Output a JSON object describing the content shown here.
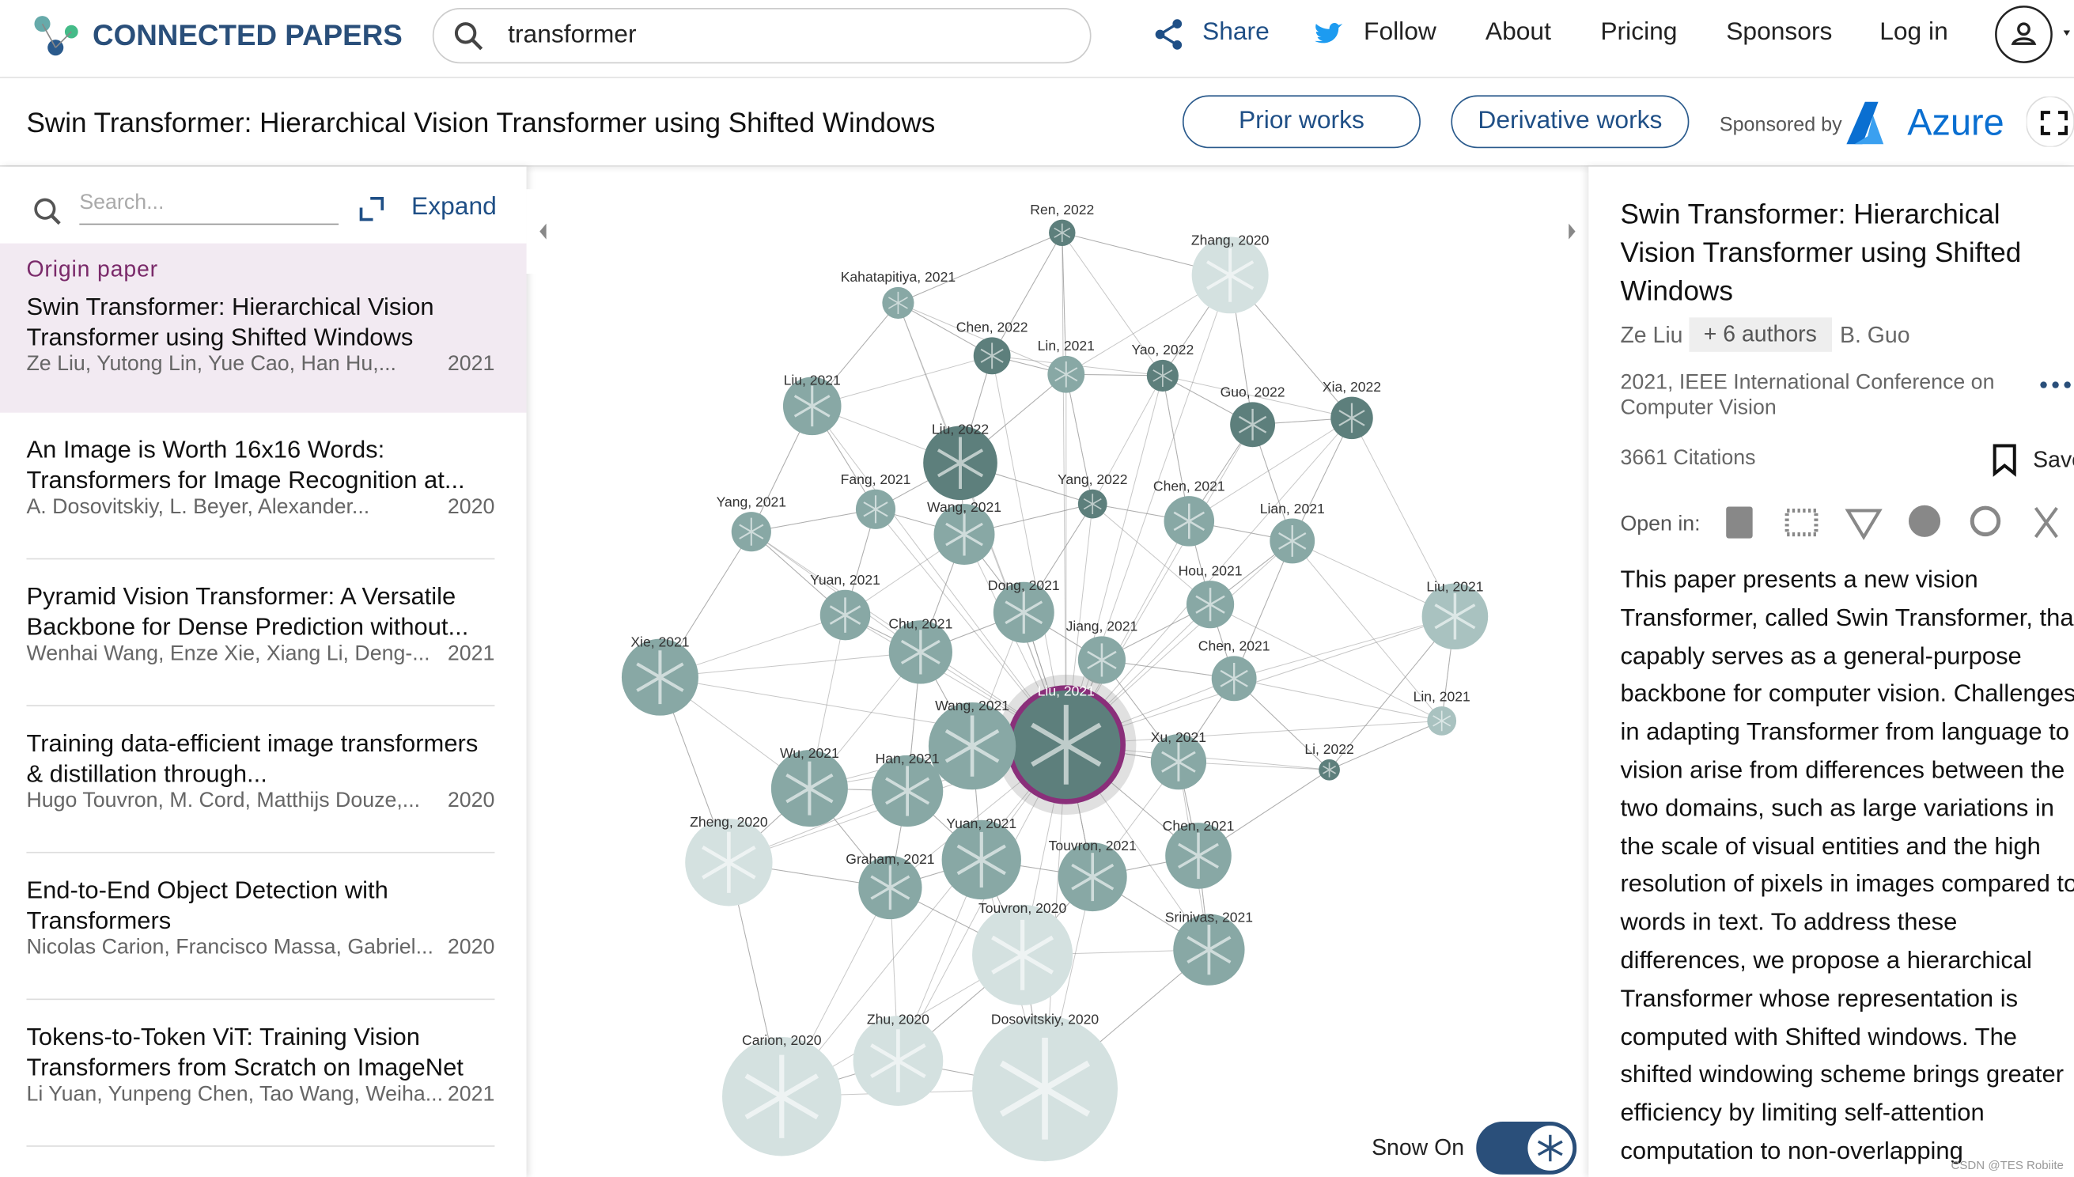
{
  "header": {
    "logo": "CONNECTED PAPERS",
    "search": "transformer",
    "nav": [
      "Share",
      "Follow",
      "About",
      "Pricing",
      "Sponsors",
      "Log in"
    ]
  },
  "subheader": {
    "title": "Swin Transformer: Hierarchical Vision Transformer using Shifted Windows",
    "prior": "Prior works",
    "derivative": "Derivative works",
    "sponsored": "Sponsored by",
    "sponsor": "Azure"
  },
  "list": {
    "search": "Search...",
    "expand": "Expand",
    "origin_label": "Origin paper",
    "papers": [
      {
        "title": "Swin Transformer: Hierarchical Vision Transformer using Shifted Windows",
        "authors": "Ze Liu, Yutong Lin, Yue Cao, Han Hu,...",
        "year": "2021"
      },
      {
        "title": "An Image is Worth 16x16 Words: Transformers for Image Recognition at...",
        "authors": "A. Dosovitskiy, L. Beyer, Alexander...",
        "year": "2020"
      },
      {
        "title": "Pyramid Vision Transformer: A Versatile Backbone for Dense Prediction without...",
        "authors": "Wenhai Wang, Enze Xie, Xiang Li, Deng-...",
        "year": "2021"
      },
      {
        "title": "Training data-efficient image transformers & distillation through...",
        "authors": "Hugo Touvron, M. Cord, Matthijs Douze,...",
        "year": "2020"
      },
      {
        "title": "End-to-End Object Detection with Transformers",
        "authors": "Nicolas Carion, Francisco Massa, Gabriel...",
        "year": "2020"
      },
      {
        "title": "Tokens-to-Token ViT: Training Vision Transformers from Scratch on ImageNet",
        "authors": "Li Yuan, Yunpeng Chen, Tao Wang, Weiha...",
        "year": "2021"
      }
    ]
  },
  "graph": {
    "nodes": [
      "Ren, 2022",
      "Zhang, 2020",
      "Kahatapitiya, 2021",
      "Chen, 2022",
      "Lin, 2021",
      "Yao, 2022",
      "Liu, 2021",
      "Guo, 2022",
      "Xia, 2022",
      "Liu, 2022",
      "Fang, 2021",
      "Yang, 2022",
      "Yang, 2021",
      "Wang, 2021",
      "Chen, 2021",
      "Lian, 2021",
      "Liu, 2021",
      "Yuan, 2021",
      "Dong, 2021",
      "Hou, 2021",
      "Chu, 2021",
      "Jiang, 2021",
      "Xie, 2021",
      "Chen, 2021",
      "Lin, 2021",
      "Liu, 2021",
      "Wang, 2021",
      "Xu, 2021",
      "Li, 2022",
      "Wu, 2021",
      "Han, 2021",
      "Zheng, 2020",
      "Chen, 2021",
      "Yuan, 2021",
      "Graham, 2021",
      "Touvron, 2021",
      "Touvron, 2020",
      "Srinivas, 2021",
      "Zhu, 2020",
      "Carion, 2020",
      "Dosovitskiy, 2020"
    ],
    "snow": "Snow On"
  },
  "details": {
    "title": "Swin Transformer: Hierarchical Vision Transformer using Shifted Windows",
    "first_author": "Ze Liu",
    "more_authors": "+ 6 authors",
    "last_author": "B. Guo",
    "venue": "2021, IEEE International Conference on Computer Vision",
    "citations": "3661 Citations",
    "save": "Save",
    "open_in": "Open in:",
    "abstract": "This paper presents a new vision Transformer, called Swin Transformer, that capably serves as a general-purpose backbone for computer vision. Challenges in adapting Transformer from language to vision arise from differences between the two domains, such as large variations in the scale of visual entities and the high resolution of pixels in images compared to words in text. To address these differences, we propose a hierarchical Transformer whose representation is computed with Shifted windows. The shifted windowing scheme brings greater efficiency by limiting self-attention computation to non-overlapping"
  },
  "watermark": "CSDN @TES Robiite"
}
